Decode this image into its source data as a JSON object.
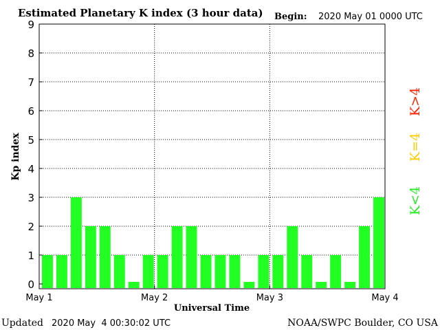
{
  "chart_data": {
    "type": "bar",
    "title": "Estimated Planetary K index (3 hour data)",
    "begin_label": "Begin:",
    "begin_value": "2020 May 01 0000 UTC",
    "xlabel": "Universal Time",
    "ylabel": "Kp index",
    "ylim": [
      0,
      9
    ],
    "yticks": [
      "0",
      "1",
      "2",
      "3",
      "4",
      "5",
      "6",
      "7",
      "8",
      "9"
    ],
    "xtick_labels": [
      "May 1",
      "May 2",
      "May 3",
      "May 4"
    ],
    "grid": "dotted",
    "values": [
      1,
      1,
      3,
      2,
      2,
      1,
      0,
      1,
      1,
      2,
      2,
      1,
      1,
      1,
      0,
      1,
      1,
      2,
      1,
      0,
      1,
      0,
      2,
      3
    ],
    "bar_color": "#22ff22",
    "legend": [
      {
        "label": "K>4",
        "color": "#ff2200"
      },
      {
        "label": "K=4",
        "color": "#ffcc00"
      },
      {
        "label": "K<4",
        "color": "#22ee22"
      }
    ]
  },
  "footer": {
    "updated_label": "Updated",
    "updated_value": "2020 May  4 00:30:02 UTC",
    "credit": "NOAA/SWPC Boulder, CO USA"
  }
}
